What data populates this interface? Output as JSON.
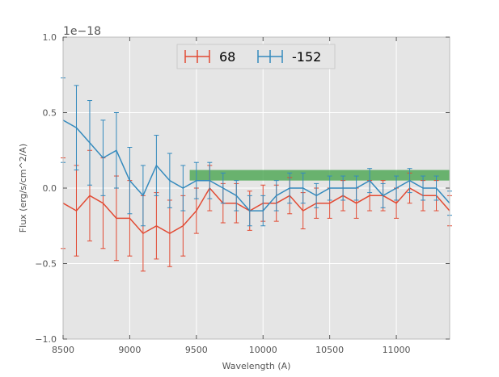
{
  "chart_data": {
    "type": "line",
    "title": "",
    "xlabel": "Wavelength (A)",
    "ylabel": "Flux (erg/s/cm^2/A)",
    "offset_label": "1e−18",
    "xlim": [
      8500,
      11400
    ],
    "ylim": [
      -1.0,
      1.0
    ],
    "y_scale_factor": "1e-18",
    "grid": true,
    "legend_position": "top-center",
    "x_ticks": [
      8500,
      9000,
      9500,
      10000,
      10500,
      11000
    ],
    "x_tick_labels": [
      "8500",
      "9000",
      "9500",
      "10000",
      "10500",
      "11000"
    ],
    "y_ticks": [
      -1.0,
      -0.5,
      0.0,
      0.5,
      1.0
    ],
    "y_tick_labels": [
      "−1.0",
      "−0.5",
      "0.0",
      "0.5",
      "1.0"
    ],
    "series": [
      {
        "name": "68",
        "color": "#e24a33",
        "x": [
          8500,
          8600,
          8700,
          8800,
          8900,
          9000,
          9100,
          9200,
          9300,
          9400,
          9500,
          9600,
          9700,
          9800,
          9900,
          10000,
          10100,
          10200,
          10300,
          10400,
          10500,
          10600,
          10700,
          10800,
          10900,
          11000,
          11100,
          11200,
          11300,
          11400
        ],
        "y": [
          -0.1,
          -0.15,
          -0.05,
          -0.1,
          -0.2,
          -0.2,
          -0.3,
          -0.25,
          -0.3,
          -0.25,
          -0.15,
          0.0,
          -0.1,
          -0.1,
          -0.15,
          -0.1,
          -0.1,
          -0.05,
          -0.15,
          -0.1,
          -0.1,
          -0.05,
          -0.1,
          -0.05,
          -0.05,
          -0.1,
          0.0,
          -0.05,
          -0.05,
          -0.15
        ],
        "error": [
          0.3,
          0.3,
          0.3,
          0.3,
          0.28,
          0.25,
          0.25,
          0.22,
          0.22,
          0.2,
          0.15,
          0.15,
          0.13,
          0.13,
          0.13,
          0.12,
          0.12,
          0.12,
          0.12,
          0.1,
          0.1,
          0.1,
          0.1,
          0.1,
          0.1,
          0.1,
          0.1,
          0.1,
          0.1,
          0.1
        ]
      },
      {
        "name": "-152",
        "color": "#348abd",
        "x": [
          8500,
          8600,
          8700,
          8800,
          8900,
          9000,
          9100,
          9200,
          9300,
          9400,
          9500,
          9600,
          9700,
          9800,
          9900,
          10000,
          10100,
          10200,
          10300,
          10400,
          10500,
          10600,
          10700,
          10800,
          10900,
          11000,
          11100,
          11200,
          11300,
          11400
        ],
        "y": [
          0.45,
          0.4,
          0.3,
          0.2,
          0.25,
          0.05,
          -0.05,
          0.15,
          0.05,
          0.0,
          0.05,
          0.05,
          0.0,
          -0.05,
          -0.15,
          -0.15,
          -0.05,
          0.0,
          0.0,
          -0.05,
          0.0,
          0.0,
          0.0,
          0.05,
          -0.05,
          0.0,
          0.05,
          0.0,
          0.0,
          -0.1
        ],
        "error": [
          0.28,
          0.28,
          0.28,
          0.25,
          0.25,
          0.22,
          0.2,
          0.2,
          0.18,
          0.15,
          0.12,
          0.12,
          0.1,
          0.1,
          0.1,
          0.1,
          0.1,
          0.1,
          0.1,
          0.08,
          0.08,
          0.08,
          0.08,
          0.08,
          0.08,
          0.08,
          0.08,
          0.08,
          0.08,
          0.08
        ]
      }
    ],
    "bands": [
      {
        "x_start": 9450,
        "x_end": 11400,
        "y_low": 0.05,
        "y_high": 0.12,
        "color": "#3fa046"
      }
    ],
    "plot_background": "#e5e5e5",
    "grid_color": "#ffffff"
  }
}
